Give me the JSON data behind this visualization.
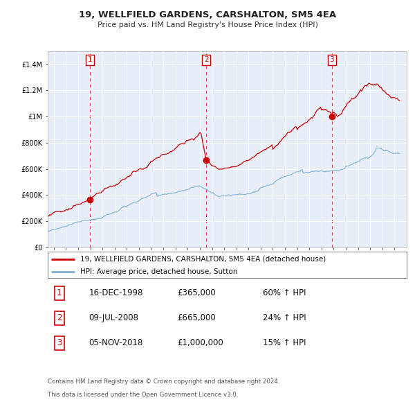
{
  "title": "19, WELLFIELD GARDENS, CARSHALTON, SM5 4EA",
  "subtitle": "Price paid vs. HM Land Registry's House Price Index (HPI)",
  "sale_color": "#cc0000",
  "hpi_color": "#7bafd4",
  "vline_color": "#cc0000",
  "sale_label": "19, WELLFIELD GARDENS, CARSHALTON, SM5 4EA (detached house)",
  "hpi_label": "HPI: Average price, detached house, Sutton",
  "transactions": [
    {
      "num": 1,
      "year": 1998.96,
      "price": 365000
    },
    {
      "num": 2,
      "year": 2008.54,
      "price": 665000
    },
    {
      "num": 3,
      "year": 2018.84,
      "price": 1000000
    }
  ],
  "table_rows": [
    {
      "num": "1",
      "date": "16-DEC-1998",
      "price": "£365,000",
      "change": "60% ↑ HPI"
    },
    {
      "num": "2",
      "date": "09-JUL-2008",
      "price": "£665,000",
      "change": "24% ↑ HPI"
    },
    {
      "num": "3",
      "date": "05-NOV-2018",
      "price": "£1,000,000",
      "change": "15% ↑ HPI"
    }
  ],
  "footnote1": "Contains HM Land Registry data © Crown copyright and database right 2024.",
  "footnote2": "This data is licensed under the Open Government Licence v3.0.",
  "background_color": "#ffffff",
  "plot_bg_color": "#e8eef8",
  "grid_color": "#ffffff",
  "xlim": [
    1995.5,
    2025.0
  ],
  "ylim": [
    0,
    1500000
  ],
  "yticks": [
    0,
    200000,
    400000,
    600000,
    800000,
    1000000,
    1200000,
    1400000
  ],
  "ytick_labels": [
    "£0",
    "£200K",
    "£400K",
    "£600K",
    "£800K",
    "£1M",
    "£1.2M",
    "£1.4M"
  ]
}
